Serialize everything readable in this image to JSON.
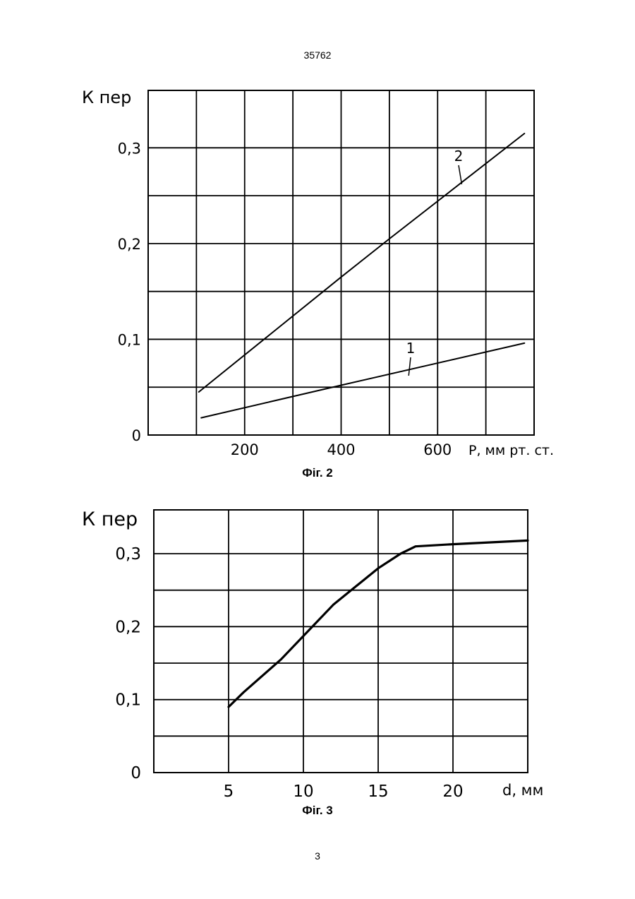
{
  "document_number": "35762",
  "page_number": "3",
  "chart_data": [
    {
      "type": "line",
      "caption": "Фіг. 2",
      "ylabel": "К пер",
      "xlabel": "P, мм рт. ст.",
      "xlim": [
        0,
        800
      ],
      "ylim": [
        0,
        0.36
      ],
      "x_ticks": [
        {
          "value": 200,
          "label": "200"
        },
        {
          "value": 400,
          "label": "400"
        },
        {
          "value": 600,
          "label": "600"
        }
      ],
      "y_ticks": [
        {
          "value": 0,
          "label": "0"
        },
        {
          "value": 0.1,
          "label": "0,1"
        },
        {
          "value": 0.2,
          "label": "0,2"
        },
        {
          "value": 0.3,
          "label": "0,3"
        }
      ],
      "grid": true,
      "series": [
        {
          "name": "1",
          "x": [
            110,
            400,
            780
          ],
          "y": [
            0.018,
            0.052,
            0.096
          ]
        },
        {
          "name": "2",
          "x": [
            105,
            400,
            500,
            780
          ],
          "y": [
            0.045,
            0.165,
            0.205,
            0.315
          ]
        }
      ]
    },
    {
      "type": "line",
      "caption": "Фіг. 3",
      "ylabel": "К пер",
      "xlabel": "d, мм",
      "xlim": [
        0,
        25
      ],
      "ylim": [
        0,
        0.36
      ],
      "x_ticks": [
        {
          "value": 5,
          "label": "5"
        },
        {
          "value": 10,
          "label": "10"
        },
        {
          "value": 15,
          "label": "15"
        },
        {
          "value": 20,
          "label": "20"
        }
      ],
      "y_ticks": [
        {
          "value": 0,
          "label": "0"
        },
        {
          "value": 0.1,
          "label": "0,1"
        },
        {
          "value": 0.2,
          "label": "0,2"
        },
        {
          "value": 0.3,
          "label": "0,3"
        }
      ],
      "grid": true,
      "series": [
        {
          "x": [
            5,
            6,
            8.5,
            12,
            15,
            16.5,
            17.5,
            20,
            25
          ],
          "y": [
            0.09,
            0.11,
            0.155,
            0.23,
            0.28,
            0.3,
            0.31,
            0.313,
            0.318
          ]
        }
      ]
    }
  ]
}
